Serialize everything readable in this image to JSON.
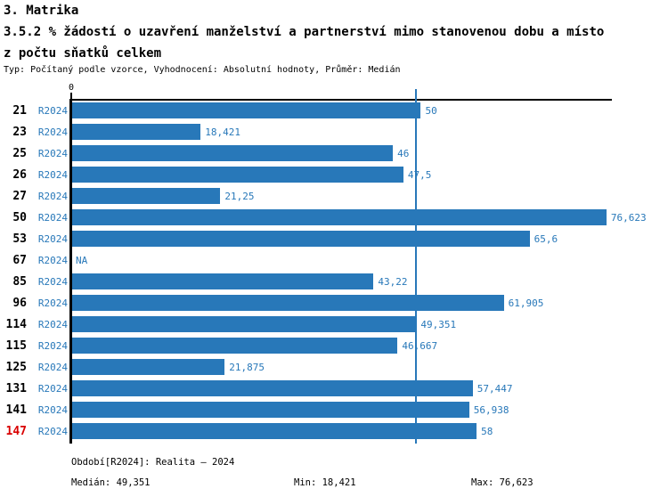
{
  "header": {
    "section": "3. Matrika",
    "title_line1": "3.5.2 % žádostí o uzavření manželství a partnerství mimo stanovenou dobu a místo",
    "title_line2": "z počtu sňatků celkem",
    "subtitle": "Typ: Počítaný podle vzorce, Vyhodnocení: Absolutní hodnoty, Průměr: Medián"
  },
  "chart_data": {
    "type": "bar",
    "orientation": "horizontal",
    "title": "3.5.2 % žádostí o uzavření manželství a partnerství mimo stanovenou dobu a místo z počtu sňatků celkem",
    "axis_zero_label": "0",
    "period_label": "R2024",
    "xlim": [
      0,
      77.4
    ],
    "grid": false,
    "median_value": 49.351,
    "bar_color": "#2878b9",
    "label_color": "#2878b9",
    "highlight_color": "#d90000",
    "rows": [
      {
        "id": "21",
        "value": 50,
        "label": "50",
        "highlight": false
      },
      {
        "id": "23",
        "value": 18.421,
        "label": "18,421",
        "highlight": false
      },
      {
        "id": "25",
        "value": 46,
        "label": "46",
        "highlight": false
      },
      {
        "id": "26",
        "value": 47.5,
        "label": "47,5",
        "highlight": false
      },
      {
        "id": "27",
        "value": 21.25,
        "label": "21,25",
        "highlight": false
      },
      {
        "id": "50",
        "value": 76.623,
        "label": "76,623",
        "highlight": false
      },
      {
        "id": "53",
        "value": 65.6,
        "label": "65,6",
        "highlight": false
      },
      {
        "id": "67",
        "value": null,
        "label": "NA",
        "highlight": false
      },
      {
        "id": "85",
        "value": 43.22,
        "label": "43,22",
        "highlight": false
      },
      {
        "id": "96",
        "value": 61.905,
        "label": "61,905",
        "highlight": false
      },
      {
        "id": "114",
        "value": 49.351,
        "label": "49,351",
        "highlight": false
      },
      {
        "id": "115",
        "value": 46.667,
        "label": "46,667",
        "highlight": false
      },
      {
        "id": "125",
        "value": 21.875,
        "label": "21,875",
        "highlight": false
      },
      {
        "id": "131",
        "value": 57.447,
        "label": "57,447",
        "highlight": false
      },
      {
        "id": "141",
        "value": 56.938,
        "label": "56,938",
        "highlight": false
      },
      {
        "id": "147",
        "value": 58,
        "label": "58",
        "highlight": true
      }
    ]
  },
  "footer": {
    "period_info": "Období[R2024]: Realita – 2024",
    "median": "Medián: 49,351",
    "min": "Min: 18,421",
    "max": "Max: 76,623"
  }
}
